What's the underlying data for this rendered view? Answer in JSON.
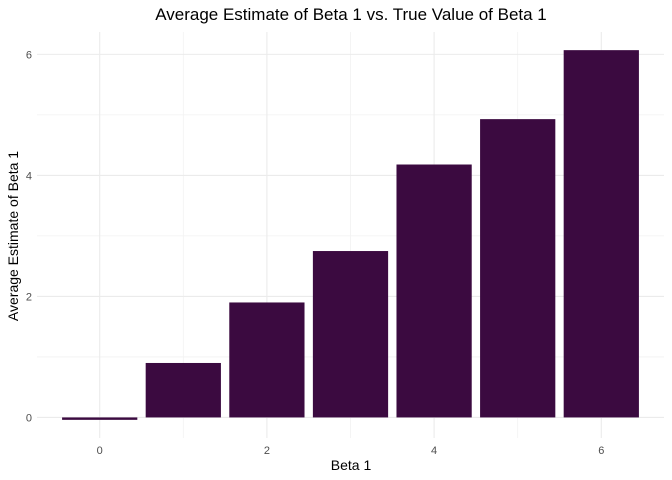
{
  "chart_data": {
    "type": "bar",
    "title": "Average Estimate of Beta 1 vs. True Value of Beta 1",
    "xlabel": "Beta 1",
    "ylabel": "Average Estimate of Beta 1",
    "x": [
      0,
      1,
      2,
      3,
      4,
      5,
      6
    ],
    "values": [
      -0.04,
      0.9,
      1.9,
      2.75,
      4.18,
      4.93,
      6.07
    ],
    "bar_color": "#3b0a40",
    "x_ticks": [
      0,
      2,
      4,
      6
    ],
    "x_tick_labels": [
      "0",
      "2",
      "4",
      "6"
    ],
    "y_ticks": [
      0,
      2,
      4,
      6
    ],
    "y_tick_labels": [
      "0",
      "2",
      "4",
      "6"
    ],
    "xlim": [
      -0.75,
      6.75
    ],
    "ylim": [
      -0.34,
      6.37
    ],
    "grid": true,
    "legend": "none"
  }
}
